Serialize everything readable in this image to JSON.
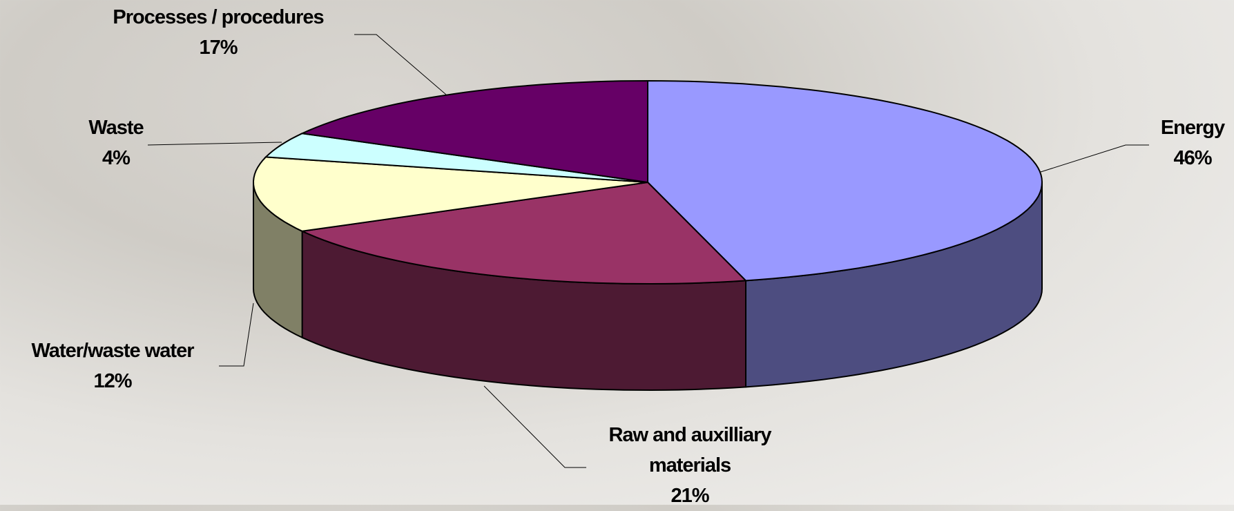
{
  "chart_data": {
    "type": "pie",
    "categories": [
      "Energy",
      "Raw and auxilliary materials",
      "Water/waste water",
      "Waste",
      "Processes / procedures"
    ],
    "values": [
      46,
      21,
      12,
      4,
      17
    ],
    "value_labels": [
      "46%",
      "21%",
      "12%",
      "4%",
      "17%"
    ],
    "colors": [
      "#9999ff",
      "#993366",
      "#ffffcc",
      "#ccffff",
      "#660066"
    ]
  }
}
